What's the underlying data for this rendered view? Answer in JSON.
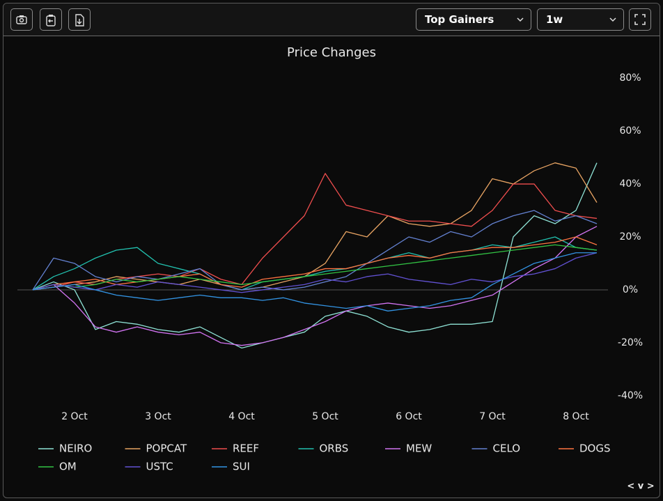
{
  "toolbar": {
    "metric": "Top Gainers",
    "period": "1w"
  },
  "pager": "< v >",
  "chart_data": {
    "type": "line",
    "title": "Price Changes",
    "categories": [
      null,
      null,
      "2 Oct",
      null,
      null,
      null,
      "3 Oct",
      null,
      null,
      null,
      "4 Oct",
      null,
      null,
      null,
      "5 Oct",
      null,
      null,
      null,
      "6 Oct",
      null,
      null,
      null,
      "7 Oct",
      null,
      null,
      null,
      "8 Oct",
      null
    ],
    "ylim": [
      -44,
      84
    ],
    "yticks": [
      {
        "value": -40,
        "label": "-40%"
      },
      {
        "value": -20,
        "label": "-20%"
      },
      {
        "value": 0,
        "label": "0%"
      },
      {
        "value": 20,
        "label": "20%"
      },
      {
        "value": 40,
        "label": "40%"
      },
      {
        "value": 60,
        "label": "60%"
      },
      {
        "value": 80,
        "label": "80%"
      }
    ],
    "zero_line": true,
    "legend": "bottom",
    "series": [
      {
        "name": "NEIRO",
        "color": "#8fe3d6",
        "values": [
          0,
          3,
          0,
          -15,
          -12,
          -13,
          -15,
          -16,
          -14,
          -18,
          -22,
          -20,
          -18,
          -16,
          -10,
          -8,
          -10,
          -14,
          -16,
          -15,
          -13,
          -13,
          -12,
          20,
          28,
          25,
          30,
          48
        ]
      },
      {
        "name": "POPCAT",
        "color": "#e8a463",
        "values": [
          0,
          1,
          2,
          3,
          5,
          4,
          3,
          2,
          4,
          2,
          0,
          1,
          3,
          5,
          10,
          22,
          20,
          28,
          25,
          24,
          25,
          30,
          42,
          40,
          45,
          48,
          46,
          33
        ]
      },
      {
        "name": "REEF",
        "color": "#f04e4e",
        "values": [
          0,
          1,
          3,
          2,
          4,
          5,
          6,
          5,
          8,
          4,
          2,
          12,
          20,
          28,
          44,
          32,
          30,
          28,
          26,
          26,
          25,
          24,
          30,
          40,
          40,
          30,
          28,
          27
        ]
      },
      {
        "name": "ORBS",
        "color": "#22c2b0",
        "values": [
          0,
          5,
          8,
          12,
          15,
          16,
          10,
          8,
          6,
          2,
          0,
          3,
          4,
          5,
          7,
          8,
          10,
          12,
          14,
          12,
          14,
          15,
          17,
          16,
          18,
          20,
          16,
          15
        ]
      },
      {
        "name": "MEW",
        "color": "#d274f2",
        "values": [
          0,
          2,
          -5,
          -14,
          -16,
          -14,
          -16,
          -17,
          -16,
          -20,
          -21,
          -20,
          -18,
          -15,
          -12,
          -8,
          -6,
          -5,
          -6,
          -7,
          -6,
          -4,
          -2,
          3,
          8,
          12,
          20,
          24
        ]
      },
      {
        "name": "CELO",
        "color": "#6482d2",
        "values": [
          0,
          12,
          10,
          5,
          3,
          5,
          4,
          6,
          8,
          2,
          0,
          1,
          0,
          1,
          3,
          5,
          10,
          15,
          20,
          18,
          22,
          20,
          25,
          28,
          30,
          26,
          28,
          25
        ]
      },
      {
        "name": "DOGS",
        "color": "#ff7442",
        "values": [
          0,
          2,
          3,
          4,
          2,
          3,
          4,
          5,
          6,
          2,
          1,
          4,
          5,
          6,
          8,
          8,
          10,
          12,
          13,
          12,
          14,
          15,
          16,
          16,
          17,
          18,
          20,
          17
        ]
      },
      {
        "name": "OM",
        "color": "#32c444",
        "values": [
          0,
          2,
          1,
          2,
          4,
          3,
          4,
          5,
          4,
          3,
          2,
          3,
          4,
          5,
          6,
          7,
          8,
          9,
          10,
          11,
          12,
          13,
          14,
          15,
          16,
          17,
          16,
          15
        ]
      },
      {
        "name": "USTC",
        "color": "#6252d4",
        "values": [
          0,
          2,
          1,
          0,
          2,
          1,
          3,
          2,
          1,
          0,
          -1,
          0,
          1,
          2,
          4,
          3,
          5,
          6,
          4,
          3,
          2,
          4,
          3,
          5,
          6,
          8,
          12,
          14
        ]
      },
      {
        "name": "SUI",
        "color": "#3394e4",
        "values": [
          0,
          1,
          2,
          0,
          -2,
          -3,
          -4,
          -3,
          -2,
          -3,
          -3,
          -4,
          -3,
          -5,
          -6,
          -7,
          -6,
          -8,
          -7,
          -6,
          -4,
          -3,
          2,
          6,
          10,
          12,
          14,
          14
        ]
      }
    ]
  }
}
